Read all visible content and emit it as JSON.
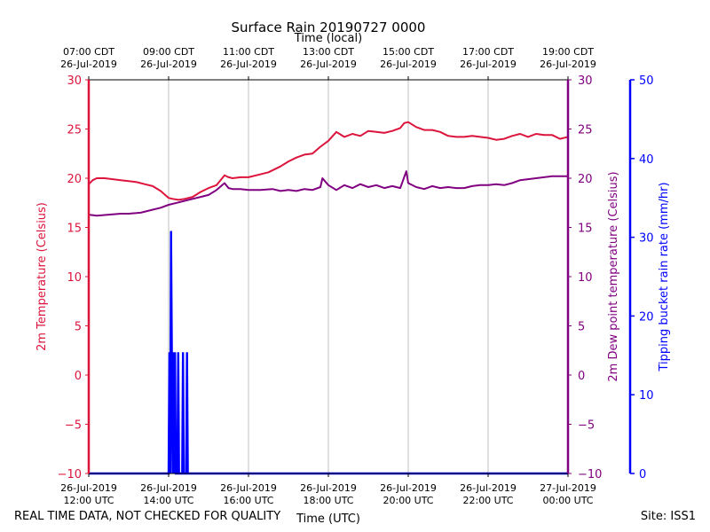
{
  "chart_data": {
    "type": "line",
    "title": "Surface Rain 20190727 0000",
    "top_axis_label": "Time (local)",
    "xlabel": "Time (UTC)",
    "x_range_utc_hours": [
      12,
      24
    ],
    "bottom_ticks": [
      {
        "hour": 12,
        "line1": "26-Jul-2019",
        "line2": "12:00 UTC"
      },
      {
        "hour": 14,
        "line1": "26-Jul-2019",
        "line2": "14:00 UTC"
      },
      {
        "hour": 16,
        "line1": "26-Jul-2019",
        "line2": "16:00 UTC"
      },
      {
        "hour": 18,
        "line1": "26-Jul-2019",
        "line2": "18:00 UTC"
      },
      {
        "hour": 20,
        "line1": "26-Jul-2019",
        "line2": "20:00 UTC"
      },
      {
        "hour": 22,
        "line1": "26-Jul-2019",
        "line2": "22:00 UTC"
      },
      {
        "hour": 24,
        "line1": "27-Jul-2019",
        "line2": "00:00 UTC"
      }
    ],
    "top_ticks": [
      {
        "hour": 12,
        "line1": "07:00 CDT",
        "line2": "26-Jul-2019"
      },
      {
        "hour": 14,
        "line1": "09:00 CDT",
        "line2": "26-Jul-2019"
      },
      {
        "hour": 16,
        "line1": "11:00 CDT",
        "line2": "26-Jul-2019"
      },
      {
        "hour": 18,
        "line1": "13:00 CDT",
        "line2": "26-Jul-2019"
      },
      {
        "hour": 20,
        "line1": "15:00 CDT",
        "line2": "26-Jul-2019"
      },
      {
        "hour": 22,
        "line1": "17:00 CDT",
        "line2": "26-Jul-2019"
      },
      {
        "hour": 24,
        "line1": "19:00 CDT",
        "line2": "26-Jul-2019"
      }
    ],
    "y_left": {
      "label": "2m Temperature (Celsius)",
      "range": [
        -10,
        30
      ],
      "ticks": [
        -10,
        -5,
        0,
        5,
        10,
        15,
        20,
        25,
        30
      ],
      "color": "#dc143c"
    },
    "y_right1": {
      "label": "2m Dew point temperature (Celsius)",
      "range": [
        -10,
        30
      ],
      "ticks": [
        -10,
        -5,
        0,
        5,
        10,
        15,
        20,
        25,
        30
      ],
      "color": "#800080"
    },
    "y_right2": {
      "label": "Tipping bucket rain rate (mm/hr)",
      "range": [
        0,
        50
      ],
      "ticks": [
        0,
        10,
        20,
        30,
        40,
        50
      ],
      "color": "#0000ff"
    },
    "series": [
      {
        "name": "2m Temperature",
        "axis": "left",
        "color": "#dc143c",
        "x": [
          12.0,
          12.1,
          12.2,
          12.4,
          12.6,
          12.8,
          13.0,
          13.2,
          13.4,
          13.6,
          13.8,
          14.0,
          14.1,
          14.25,
          14.4,
          14.6,
          14.8,
          15.0,
          15.2,
          15.4,
          15.5,
          15.6,
          15.8,
          16.0,
          16.2,
          16.5,
          16.8,
          17.0,
          17.2,
          17.4,
          17.6,
          17.8,
          18.0,
          18.2,
          18.4,
          18.6,
          18.8,
          19.0,
          19.2,
          19.4,
          19.6,
          19.8,
          19.9,
          20.0,
          20.2,
          20.4,
          20.6,
          20.8,
          21.0,
          21.2,
          21.4,
          21.6,
          21.8,
          22.0,
          22.2,
          22.4,
          22.6,
          22.8,
          23.0,
          23.2,
          23.4,
          23.6,
          23.8,
          24.0
        ],
        "values": [
          19.4,
          19.8,
          20.0,
          20.0,
          19.9,
          19.8,
          19.7,
          19.6,
          19.4,
          19.2,
          18.7,
          18.0,
          17.9,
          17.8,
          17.9,
          18.1,
          18.6,
          19.0,
          19.3,
          20.3,
          20.1,
          20.0,
          20.1,
          20.1,
          20.3,
          20.6,
          21.2,
          21.7,
          22.1,
          22.4,
          22.5,
          23.2,
          23.8,
          24.7,
          24.2,
          24.5,
          24.3,
          24.8,
          24.7,
          24.6,
          24.8,
          25.1,
          25.6,
          25.7,
          25.2,
          24.9,
          24.9,
          24.7,
          24.3,
          24.2,
          24.2,
          24.3,
          24.2,
          24.1,
          23.9,
          24.0,
          24.3,
          24.5,
          24.2,
          24.5,
          24.4,
          24.4,
          24.0,
          24.2
        ]
      },
      {
        "name": "2m Dew point temperature",
        "axis": "right1",
        "color": "#800080",
        "x": [
          12.0,
          12.2,
          12.5,
          12.8,
          13.0,
          13.3,
          13.6,
          13.8,
          14.0,
          14.2,
          14.4,
          14.6,
          14.8,
          15.0,
          15.2,
          15.4,
          15.5,
          15.6,
          15.8,
          16.0,
          16.3,
          16.6,
          16.8,
          17.0,
          17.2,
          17.4,
          17.6,
          17.8,
          17.85,
          18.0,
          18.2,
          18.4,
          18.6,
          18.8,
          19.0,
          19.2,
          19.4,
          19.6,
          19.8,
          19.95,
          20.0,
          20.2,
          20.4,
          20.6,
          20.8,
          21.0,
          21.2,
          21.4,
          21.6,
          21.8,
          22.0,
          22.2,
          22.4,
          22.6,
          22.8,
          23.0,
          23.2,
          23.4,
          23.6,
          23.8,
          24.0
        ],
        "values": [
          16.3,
          16.2,
          16.3,
          16.4,
          16.4,
          16.5,
          16.8,
          17.0,
          17.3,
          17.5,
          17.7,
          17.9,
          18.1,
          18.3,
          18.8,
          19.5,
          19.0,
          18.9,
          18.9,
          18.8,
          18.8,
          18.9,
          18.7,
          18.8,
          18.7,
          18.9,
          18.8,
          19.1,
          20.0,
          19.3,
          18.8,
          19.3,
          19.0,
          19.4,
          19.1,
          19.3,
          19.0,
          19.2,
          19.0,
          20.7,
          19.5,
          19.1,
          18.9,
          19.2,
          19.0,
          19.1,
          19.0,
          19.0,
          19.2,
          19.3,
          19.3,
          19.4,
          19.3,
          19.5,
          19.8,
          19.9,
          20.0,
          20.1,
          20.2,
          20.2,
          20.2
        ]
      },
      {
        "name": "Tipping bucket rain rate",
        "axis": "right2",
        "color": "#0000ff",
        "x": [
          12.0,
          14.0,
          14.02,
          14.04,
          14.06,
          14.08,
          14.1,
          14.12,
          14.14,
          14.16,
          14.18,
          14.2,
          14.22,
          14.24,
          14.26,
          14.28,
          14.3,
          14.32,
          14.34,
          14.36,
          14.38,
          14.4,
          14.42,
          14.44,
          14.46,
          14.48,
          14.5,
          14.52,
          14.54,
          14.56,
          14.58,
          24.0
        ],
        "values": [
          0,
          0,
          15.4,
          0,
          30.8,
          15.4,
          0,
          15.4,
          0,
          15.4,
          0,
          0,
          0,
          15.4,
          0,
          0,
          0,
          0,
          0,
          15.4,
          0,
          0,
          0,
          0,
          15.4,
          0,
          0,
          0,
          0,
          0,
          0,
          0
        ]
      }
    ]
  },
  "footer": {
    "disclaimer": "REAL TIME DATA, NOT CHECKED FOR QUALITY",
    "site": "Site: ISS1"
  }
}
